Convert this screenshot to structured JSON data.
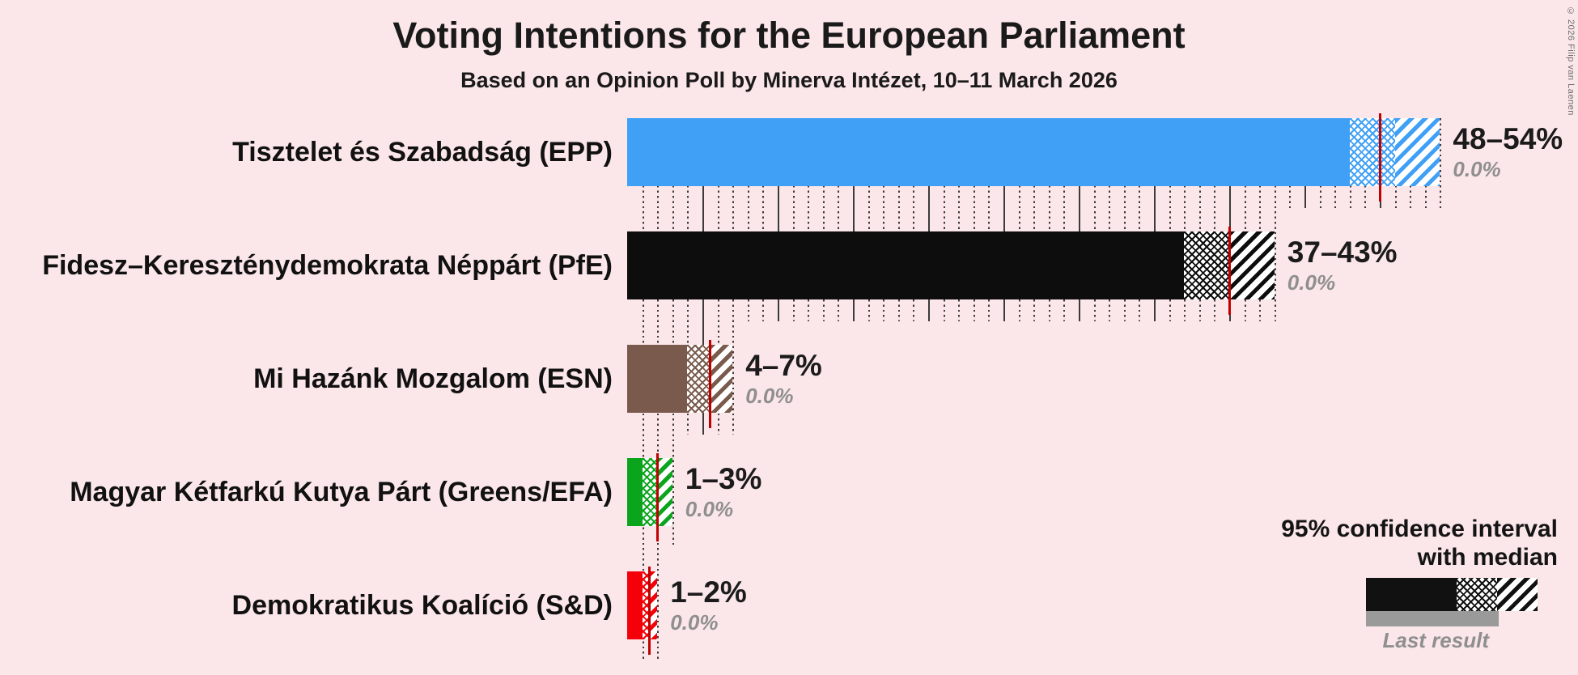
{
  "chart_data": {
    "type": "bar",
    "orientation": "horizontal",
    "title": "Voting Intentions for the European Parliament",
    "subtitle": "Based on an Opinion Poll by Minerva Intézet, 10–11 March 2026",
    "x_axis": {
      "unit": "%",
      "min": 0,
      "max": 54,
      "minor_gridline_step": 1,
      "major_gridline_step": 5
    },
    "parties": [
      {
        "label": "Tisztelet és Szabadság (EPP)",
        "low": 48,
        "median": 50,
        "high": 54,
        "range_label": "48–54%",
        "last_result_label": "0.0%",
        "color": "#3FA0F6"
      },
      {
        "label": "Fidesz–Kereszténydemokrata Néppárt (PfE)",
        "low": 37,
        "median": 40,
        "high": 43,
        "range_label": "37–43%",
        "last_result_label": "0.0%",
        "color": "#0D0D0D"
      },
      {
        "label": "Mi Hazánk Mozgalom (ESN)",
        "low": 4,
        "median": 5.5,
        "high": 7,
        "range_label": "4–7%",
        "last_result_label": "0.0%",
        "color": "#7A5A4C"
      },
      {
        "label": "Magyar Kétfarkú Kutya Párt (Greens/EFA)",
        "low": 1,
        "median": 2,
        "high": 3,
        "range_label": "1–3%",
        "last_result_label": "0.0%",
        "color": "#0BA51D"
      },
      {
        "label": "Demokratikus Koalíció (S&D)",
        "low": 1,
        "median": 1.5,
        "high": 2,
        "range_label": "1–2%",
        "last_result_label": "0.0%",
        "color": "#F50008"
      }
    ],
    "legend": {
      "line1": "95% confidence interval",
      "line2": "with median",
      "last_result_label": "Last result",
      "sample_color": "#111111",
      "last_result_color": "#9A9A9A"
    },
    "watermark": "© 2026 Filip van Laenen",
    "colors": {
      "background": "#FBE6E9",
      "median_line": "#C00000",
      "text": "#1A1A1A",
      "muted_text": "#8F8F8F",
      "gridline": "#3B3B3B"
    }
  }
}
